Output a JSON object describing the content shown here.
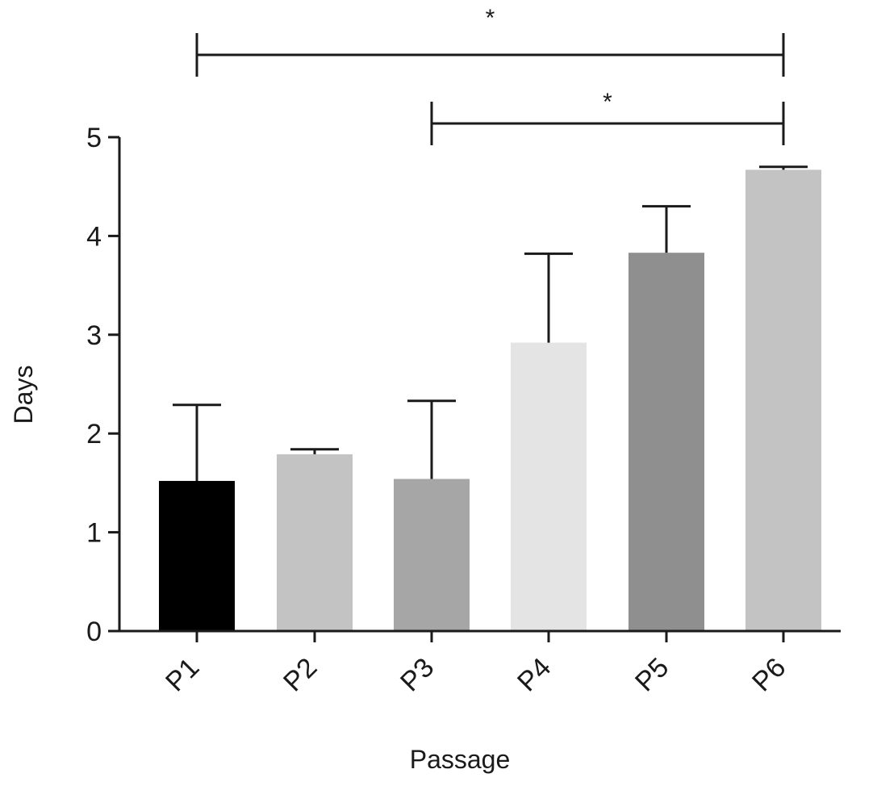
{
  "chart_data": {
    "type": "bar",
    "categories": [
      "P1",
      "P2",
      "P3",
      "P4",
      "P5",
      "P6"
    ],
    "values": [
      1.52,
      1.79,
      1.54,
      2.92,
      3.83,
      4.67
    ],
    "error_upper": [
      2.29,
      1.84,
      2.33,
      3.82,
      4.3,
      4.7
    ],
    "bar_colors": [
      "#000000",
      "#c3c3c3",
      "#a6a6a6",
      "#e4e4e4",
      "#8f8f8f",
      "#c3c3c3"
    ],
    "title": "",
    "xlabel": "Passage",
    "ylabel": "Days",
    "ylim": [
      0,
      5
    ],
    "yticks": [
      "0",
      "1",
      "2",
      "3",
      "4",
      "5"
    ],
    "grid": false,
    "legend": "none",
    "significance": [
      {
        "from": "P1",
        "to": "P6",
        "label": "*"
      },
      {
        "from": "P3",
        "to": "P6",
        "label": "*"
      }
    ]
  }
}
